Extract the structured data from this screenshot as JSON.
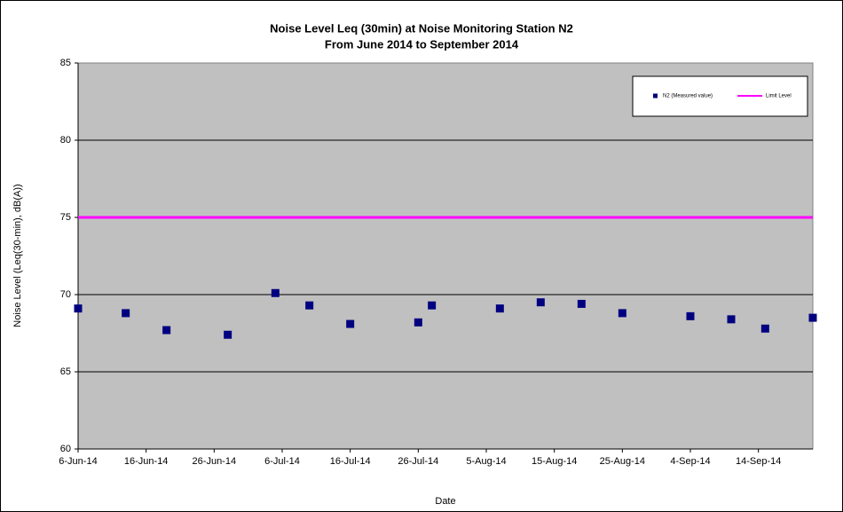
{
  "chart_data": {
    "type": "scatter",
    "title": "Noise Level Leq (30min) at Noise Monitoring Station N2",
    "subtitle": "From June 2014 to September 2014",
    "x_label": "Date",
    "y_label": "Noise Level (Leq(30-min), dB(A))",
    "series": [
      {
        "name": "N2 (Measured value)",
        "color": "#000080",
        "mode": "markers",
        "x": [
          "2014-06-06",
          "2014-06-13",
          "2014-06-19",
          "2014-06-28",
          "2014-07-05",
          "2014-07-10",
          "2014-07-16",
          "2014-07-26",
          "2014-07-28",
          "2014-08-07",
          "2014-08-13",
          "2014-08-19",
          "2014-08-25",
          "2014-09-04",
          "2014-09-10",
          "2014-09-15",
          "2014-09-22"
        ],
        "values": [
          69.1,
          68.8,
          67.7,
          67.4,
          70.1,
          69.3,
          68.1,
          68.2,
          69.3,
          69.1,
          69.5,
          69.4,
          68.8,
          68.6,
          68.4,
          67.8,
          68.5
        ]
      },
      {
        "name": "Limit Level",
        "color": "#ff00ff",
        "mode": "line",
        "x": [
          "2014-06-06",
          "2014-09-22"
        ],
        "values": [
          75,
          75
        ]
      }
    ],
    "xlim": [
      "2014-06-06",
      "2014-09-22"
    ],
    "xticks": [
      {
        "value": "2014-06-06",
        "label": "6-Jun-14"
      },
      {
        "value": "2014-06-16",
        "label": "16-Jun-14"
      },
      {
        "value": "2014-06-26",
        "label": "26-Jun-14"
      },
      {
        "value": "2014-07-06",
        "label": "6-Jul-14"
      },
      {
        "value": "2014-07-16",
        "label": "16-Jul-14"
      },
      {
        "value": "2014-07-26",
        "label": "26-Jul-14"
      },
      {
        "value": "2014-08-05",
        "label": "5-Aug-14"
      },
      {
        "value": "2014-08-15",
        "label": "15-Aug-14"
      },
      {
        "value": "2014-08-25",
        "label": "25-Aug-14"
      },
      {
        "value": "2014-09-04",
        "label": "4-Sep-14"
      },
      {
        "value": "2014-09-14",
        "label": "14-Sep-14"
      }
    ],
    "ylim": [
      60,
      85
    ],
    "yticks": [
      60,
      65,
      70,
      75,
      80,
      85
    ],
    "grid": true,
    "legend": "top-right",
    "plot_background": "#c0c0c0"
  }
}
